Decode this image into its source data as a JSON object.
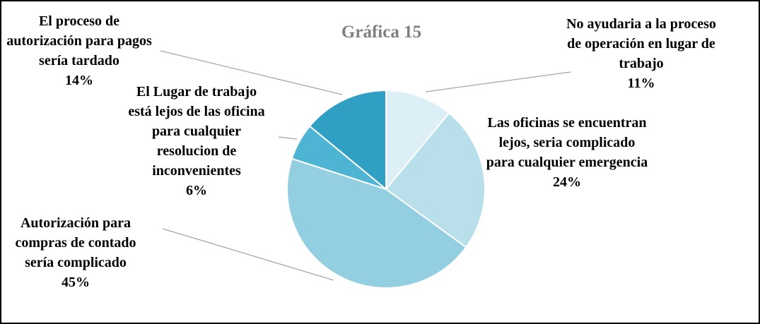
{
  "chart_data": {
    "type": "pie",
    "title": "Gráfica 15",
    "categories": [
      "No ayudaria a la proceso de operación en lugar de trabajo",
      "Las oficinas se encuentran lejos, seria complicado para cualquier emergencia",
      "Autorización para compras de contado sería complicado",
      "El Lugar de trabajo está lejos de las oficina para cualquier resolucion de inconvenientes",
      "El proceso de autorización para pagos sería tardado"
    ],
    "values": [
      11,
      24,
      45,
      6,
      14
    ],
    "value_labels": [
      "11%",
      "24%",
      "45%",
      "6%",
      "14%"
    ],
    "colors": [
      "#dceff7",
      "#b9dfea",
      "#93cfe0",
      "#4db5d3",
      "#2f9fc4"
    ]
  }
}
